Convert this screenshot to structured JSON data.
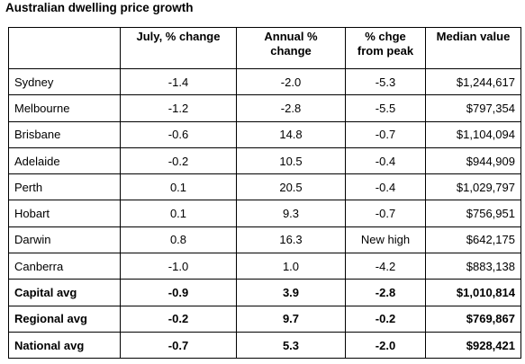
{
  "title": "Australian dwelling price growth",
  "table": {
    "header": [
      "",
      "July, % change",
      "Annual % change",
      "% chge from peak",
      "Median value"
    ],
    "rows": [
      [
        "Sydney",
        "-1.4",
        "-2.0",
        "-5.3",
        "$1,244,617"
      ],
      [
        "Melbourne",
        "-1.2",
        "-2.8",
        "-5.5",
        "$797,354"
      ],
      [
        "Brisbane",
        "-0.6",
        "14.8",
        "-0.7",
        "$1,104,094"
      ],
      [
        "Adelaide",
        "-0.2",
        "10.5",
        "-0.4",
        "$944,909"
      ],
      [
        "Perth",
        "0.1",
        "20.5",
        "-0.4",
        "$1,029,797"
      ],
      [
        "Hobart",
        "0.1",
        "9.3",
        "-0.7",
        "$756,951"
      ],
      [
        "Darwin",
        "0.8",
        "16.3",
        "New high",
        "$642,175"
      ],
      [
        "Canberra",
        "-1.0",
        "1.0",
        "-4.2",
        "$883,138"
      ],
      [
        "Capital avg",
        "-0.9",
        "3.9",
        "-2.8",
        "$1,010,814"
      ],
      [
        "Regional avg",
        "-0.2",
        "9.7",
        "-0.2",
        "$769,867"
      ],
      [
        "National avg",
        "-0.7",
        "5.3",
        "-2.0",
        "$928,421"
      ]
    ],
    "bold_rows": [
      8,
      9,
      10
    ]
  }
}
